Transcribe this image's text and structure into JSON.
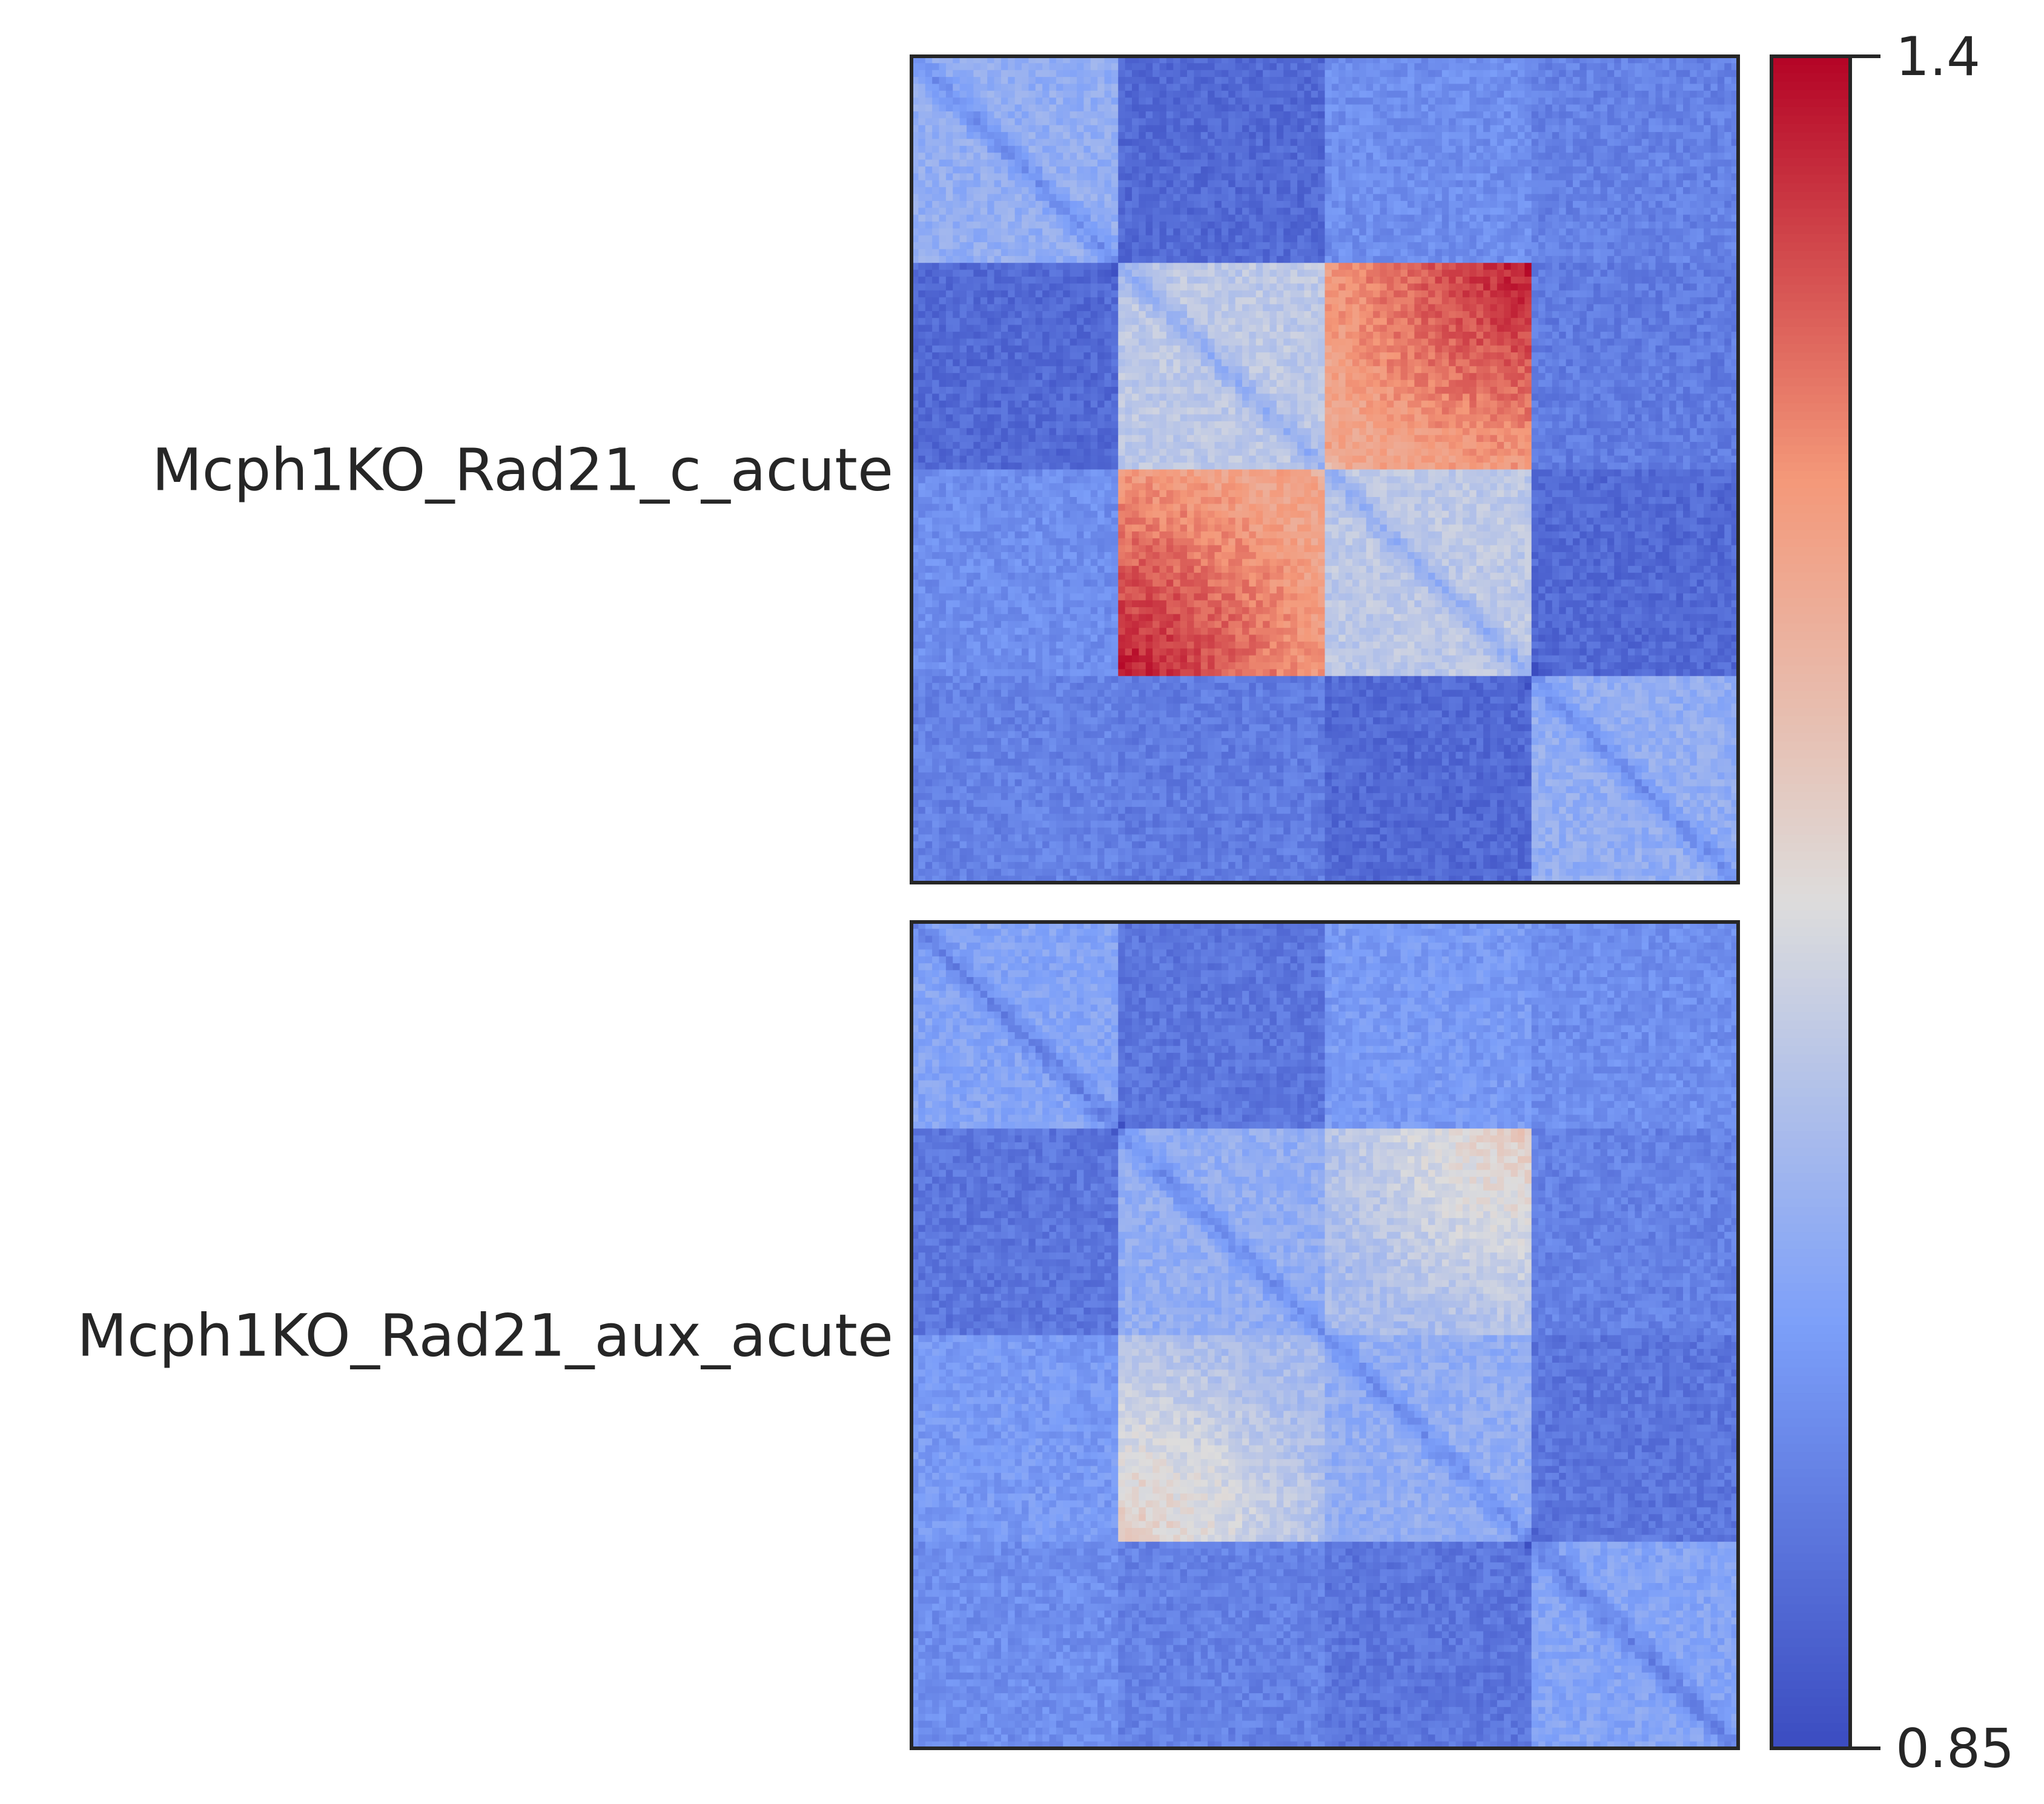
{
  "chart_data": {
    "type": "heatmap",
    "title": "",
    "colormap": "coolwarm",
    "colors": {
      "low": "#3b4cc0",
      "mid": "#dddcdc",
      "high": "#b40426",
      "frame": "#262626"
    },
    "color_range": [
      0.85,
      1.4
    ],
    "colorbar": {
      "placement": "right",
      "tick_labels": [
        "1.4",
        "0.85"
      ],
      "tick_values": [
        1.4,
        0.85
      ]
    },
    "grid": false,
    "panels": [
      {
        "name": "Mcph1KO_Rad21_c_acute",
        "pattern": "pileup",
        "block_values": [
          [
            1.02,
            0.9,
            0.96,
            0.94
          ],
          [
            0.9,
            1.08,
            1.24,
            0.93
          ],
          [
            0.96,
            1.24,
            1.08,
            0.9
          ],
          [
            0.94,
            0.93,
            0.9,
            1.02
          ]
        ],
        "boundary_peak": 1.4
      },
      {
        "name": "Mcph1KO_Rad21_aux_acute",
        "pattern": "pileup",
        "block_values": [
          [
            1.0,
            0.92,
            0.98,
            0.96
          ],
          [
            0.92,
            1.02,
            1.05,
            0.94
          ],
          [
            0.98,
            1.05,
            1.02,
            0.92
          ],
          [
            0.96,
            0.94,
            0.92,
            1.0
          ]
        ],
        "boundary_peak": 1.18
      }
    ]
  }
}
